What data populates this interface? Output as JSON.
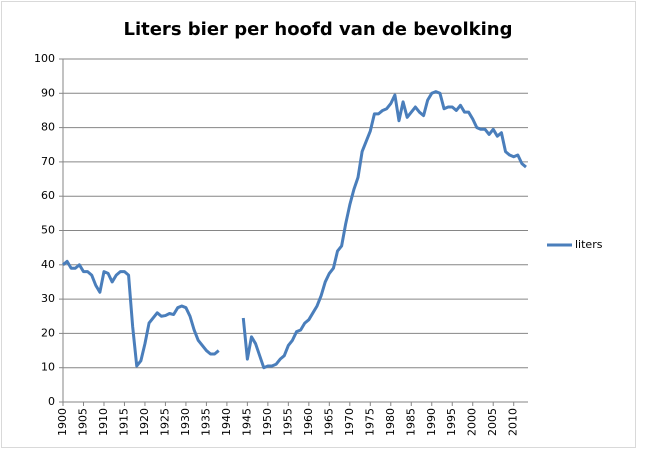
{
  "chart_data": {
    "type": "line",
    "title": "Liters bier per hoofd van de bevolking",
    "x": [
      1900,
      1901,
      1902,
      1903,
      1904,
      1905,
      1906,
      1907,
      1908,
      1909,
      1910,
      1911,
      1912,
      1913,
      1914,
      1915,
      1916,
      1917,
      1918,
      1919,
      1920,
      1921,
      1922,
      1923,
      1924,
      1925,
      1926,
      1927,
      1928,
      1929,
      1930,
      1931,
      1932,
      1933,
      1934,
      1935,
      1936,
      1937,
      1938,
      1939,
      1940,
      1941,
      1942,
      1943,
      1944,
      1945,
      1946,
      1947,
      1948,
      1949,
      1950,
      1951,
      1952,
      1953,
      1954,
      1955,
      1956,
      1957,
      1958,
      1959,
      1960,
      1961,
      1962,
      1963,
      1964,
      1965,
      1966,
      1967,
      1968,
      1969,
      1970,
      1971,
      1972,
      1973,
      1974,
      1975,
      1976,
      1977,
      1978,
      1979,
      1980,
      1981,
      1982,
      1983,
      1984,
      1985,
      1986,
      1987,
      1988,
      1989,
      1990,
      1991,
      1992,
      1993,
      1994,
      1995,
      1996,
      1997,
      1998,
      1999,
      2000,
      2001,
      2002,
      2003,
      2004,
      2005,
      2006,
      2007,
      2008,
      2009,
      2010,
      2011,
      2012,
      2013
    ],
    "series": [
      {
        "name": "liters",
        "color": "#4a7ebb",
        "values": [
          40,
          41,
          39,
          39,
          40,
          38,
          38,
          37,
          34,
          32,
          38,
          37.5,
          35,
          37,
          38,
          38,
          37,
          22,
          10.5,
          12,
          17,
          23,
          24.5,
          26,
          25,
          25.2,
          25.8,
          25.5,
          27.5,
          28,
          27.5,
          25,
          21,
          18,
          16.5,
          15,
          14,
          14,
          15,
          null,
          null,
          null,
          null,
          null,
          24.5,
          12.5,
          19,
          17,
          13.5,
          10,
          10.5,
          10.5,
          11,
          12.5,
          13.5,
          16.5,
          18,
          20.5,
          21,
          23,
          24,
          26,
          28,
          31,
          35,
          37.5,
          39,
          44,
          45.5,
          52,
          57.5,
          62,
          65.5,
          73,
          76,
          79,
          84,
          84,
          85,
          85.5,
          87,
          89.5,
          82,
          87.5,
          83,
          84.5,
          86,
          84.5,
          83.5,
          88,
          90,
          90.5,
          90,
          85.5,
          86,
          86,
          85,
          86.5,
          84.5,
          84.5,
          82.5,
          80,
          79.5,
          79.5,
          78,
          79.5,
          77.5,
          78.5,
          73,
          72,
          71.5,
          72,
          69.5,
          68.5
        ]
      }
    ],
    "xlim": [
      1900,
      2013
    ],
    "xticks": [
      1900,
      1905,
      1910,
      1915,
      1920,
      1925,
      1930,
      1935,
      1940,
      1945,
      1950,
      1955,
      1960,
      1965,
      1970,
      1975,
      1980,
      1985,
      1990,
      1995,
      2000,
      2005,
      2010
    ],
    "ylim": [
      0,
      100
    ],
    "yticks": [
      0,
      10,
      20,
      30,
      40,
      50,
      60,
      70,
      80,
      90,
      100
    ],
    "grid": true,
    "legend": "right"
  }
}
